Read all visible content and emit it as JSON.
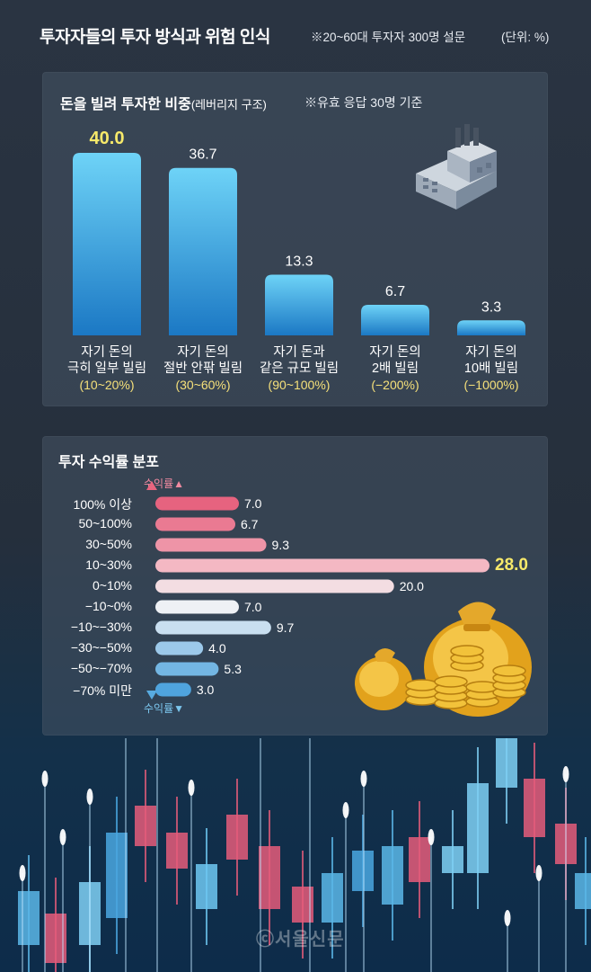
{
  "header": {
    "title": "투자자들의 투자 방식과 위험 인식",
    "note": "※20~60대 투자자 300명 설문",
    "unit": "(단위: %)"
  },
  "panel1": {
    "title_main": "돈을 빌려 투자한 비중",
    "title_sub": "(레버리지 구조)",
    "note": "※유효 응답 30명 기준"
  },
  "panel2": {
    "title": "투자 수익률 분포",
    "axis_up": "수익률▲",
    "axis_down": "수익률▼"
  },
  "chart_data": [
    {
      "type": "bar",
      "categories": [
        {
          "line1": "자기 돈의",
          "line2": "극히 일부 빌림",
          "range": "(10~20%)"
        },
        {
          "line1": "자기 돈의",
          "line2": "절반 안팎 빌림",
          "range": "(30~60%)"
        },
        {
          "line1": "자기 돈과",
          "line2": "같은 규모 빌림",
          "range": "(90~100%)"
        },
        {
          "line1": "자기 돈의",
          "line2": "2배 빌림",
          "range": "(−200%)"
        },
        {
          "line1": "자기 돈의",
          "line2": "10배 빌림",
          "range": "(−1000%)"
        }
      ],
      "values": [
        40.0,
        36.7,
        13.3,
        6.7,
        3.3
      ],
      "value_labels": [
        "40.0",
        "36.7",
        "13.3",
        "6.7",
        "3.3"
      ],
      "highlight_index": 0,
      "highlight_color": "#f7e96a",
      "bar_color_top": "#6ed3f7",
      "bar_color_bottom": "#1b78c4"
    },
    {
      "type": "bar",
      "orientation": "horizontal",
      "categories": [
        "100% 이상",
        "50~100%",
        "30~50%",
        "10~30%",
        "0~10%",
        "−10~0%",
        "−10~−30%",
        "−30~−50%",
        "−50~−70%",
        "−70% 미만"
      ],
      "values": [
        7.0,
        6.7,
        9.3,
        28.0,
        20.0,
        7.0,
        9.7,
        4.0,
        5.3,
        3.0
      ],
      "value_labels": [
        "7.0",
        "6.7",
        "9.3",
        "28.0",
        "20.0",
        "7.0",
        "9.7",
        "4.0",
        "5.3",
        "3.0"
      ],
      "bar_colors": [
        "#e6637f",
        "#ea7a92",
        "#ee94a7",
        "#f4b8c3",
        "#f3dde2",
        "#eef1f5",
        "#c9dff0",
        "#9cc9ea",
        "#73b6e3",
        "#4fa4de"
      ],
      "highlight_index": 3,
      "highlight_color": "#f7e96a"
    }
  ],
  "credit": "ⓒ서울신문"
}
